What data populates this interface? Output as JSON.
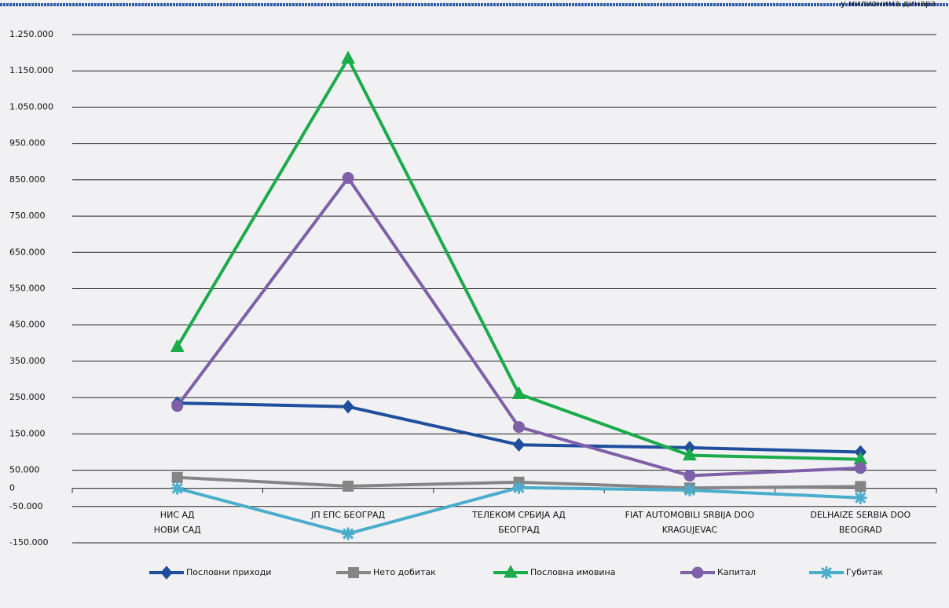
{
  "chart_data": {
    "type": "line",
    "unit_note": "у милионима динара",
    "categories": [
      [
        "НИС АД",
        "НОВИ САД"
      ],
      [
        "ЈП ЕПС БЕОГРАД"
      ],
      [
        "ТЕЛЕКОМ СРБИЈА АД",
        "БЕОГРАД"
      ],
      [
        "FIAT AUTOMOBILI SRBIJA DOO",
        "KRAGUJEVAC"
      ],
      [
        "DELHAIZE SERBIA DOO",
        "BEOGRAD"
      ]
    ],
    "series": [
      {
        "name": "Пословни приходи",
        "color": "#1f4e9c",
        "marker": "diamond",
        "values": [
          235000,
          225000,
          120000,
          112000,
          100000
        ]
      },
      {
        "name": "Нето добитак",
        "color": "#858585",
        "marker": "square",
        "values": [
          30000,
          6000,
          17000,
          1000,
          5000
        ]
      },
      {
        "name": "Пословна имовина",
        "color": "#1aab4b",
        "marker": "triangle",
        "values": [
          390000,
          1184000,
          260000,
          91000,
          80000
        ]
      },
      {
        "name": "Капитал",
        "color": "#7e60a8",
        "marker": "circle",
        "values": [
          227000,
          855000,
          169000,
          35000,
          56000
        ]
      },
      {
        "name": "Губитак",
        "color": "#4badcc",
        "marker": "asterisk",
        "values": [
          0,
          -125000,
          2000,
          -5000,
          -26000
        ]
      }
    ],
    "ylim": [
      -150000,
      1250000
    ],
    "yticks": [
      {
        "value": -150000,
        "label": "-150.000"
      },
      {
        "value": -50000,
        "label": "-50.000"
      },
      0,
      {
        "value": 50000,
        "label": "50.000"
      },
      {
        "value": 150000,
        "label": "150.000"
      },
      {
        "value": 250000,
        "label": "250.000"
      },
      {
        "value": 350000,
        "label": "350.000"
      },
      {
        "value": 450000,
        "label": "450.000"
      },
      {
        "value": 550000,
        "label": "550.000"
      },
      {
        "value": 650000,
        "label": "650.000"
      },
      {
        "value": 750000,
        "label": "750.000"
      },
      {
        "value": 850000,
        "label": "850.000"
      },
      {
        "value": 950000,
        "label": "950.000"
      },
      {
        "value": 1050000,
        "label": "1.050.000"
      },
      {
        "value": 1150000,
        "label": "1.150.000"
      },
      {
        "value": 1250000,
        "label": "1.250.000"
      }
    ],
    "grid": true,
    "legend": "bottom"
  }
}
